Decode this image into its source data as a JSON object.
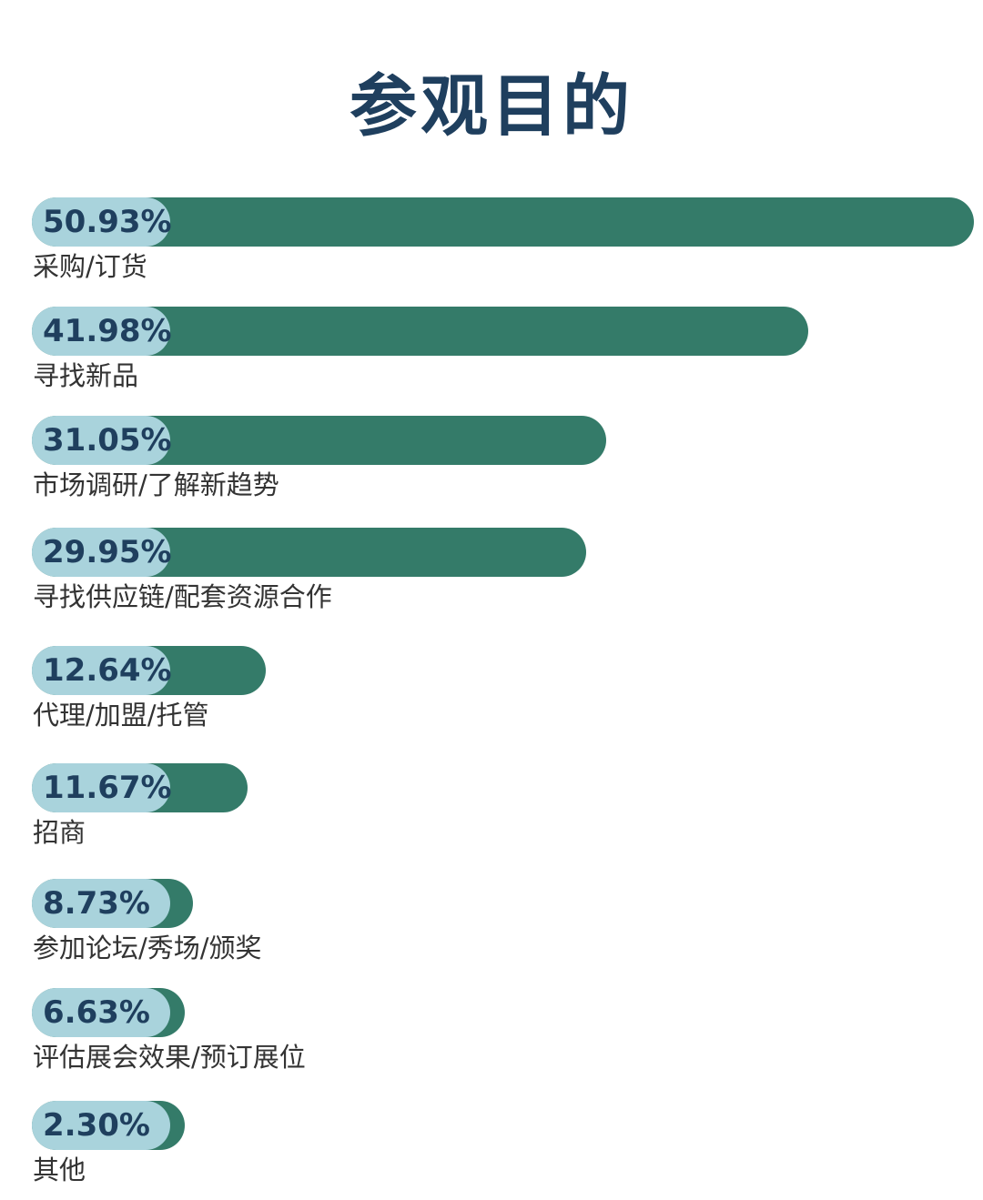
{
  "page": {
    "title": "参观目的"
  },
  "colors": {
    "title": "#1f3f5e",
    "bar": "#347b69",
    "pill": "#a9d3dc",
    "value_text": "#1f3f5e",
    "category_text": "#333333"
  },
  "chart_data": {
    "type": "bar",
    "orientation": "horizontal",
    "title": "参观目的",
    "unit": "%",
    "categories": [
      "采购/订货",
      "寻找新品",
      "市场调研/了解新趋势",
      "寻找供应链/配套资源合作",
      "代理/加盟/托管",
      "招商",
      "参加论坛/秀场/颁奖",
      "评估展会效果/预订展位",
      "其他"
    ],
    "values": [
      50.93,
      41.98,
      31.05,
      29.95,
      12.64,
      11.67,
      8.73,
      6.63,
      2.3
    ],
    "value_labels": [
      "50.93%",
      "41.98%",
      "31.05%",
      "29.95%",
      "12.64%",
      "11.67%",
      "8.73%",
      "6.63%",
      "2.30%"
    ],
    "xlim": [
      0,
      50.93
    ],
    "grid": false,
    "legend": false
  }
}
